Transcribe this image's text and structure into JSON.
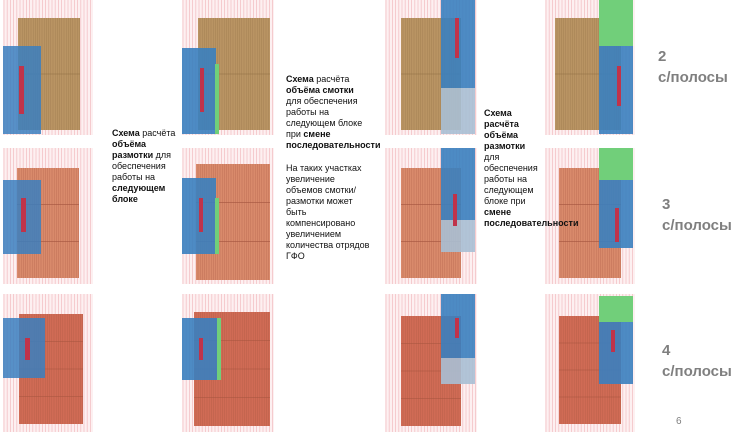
{
  "colors": {
    "field_stripe": "#f3c2c6",
    "field_bg": "#fdf0f1",
    "block_brown": "#b99463",
    "block_brown_grid": "#8d6c42",
    "block_orange": "#d98a6b",
    "block_red": "#d06b55",
    "block_grid": "#a4543f",
    "blue": "#3a7fbf",
    "blue_light": "#a9bfd4",
    "green": "#71cf7a",
    "face": "#c0334a"
  },
  "captions": {
    "razmotka_1": {
      "lead_bold": "Схема",
      "lead": " расчёта ",
      "bold1": "объёма размотки",
      "mid": " для обеспечения работы на ",
      "bold2": "следующем блоке"
    },
    "smotka": {
      "lead_bold": "Схема",
      "lead": " расчёта ",
      "bold1": "объёма смотки",
      "mid": " для обеспечения работы на следующем блоке при ",
      "bold2": "смене последовательности",
      "note": "На таких участках увеличение объемов смотки/размотки может быть компенсировано увеличением количества отрядов ГФО"
    },
    "razmotka_2": {
      "lead_bold": "Схема расчёта объёма размотки",
      "mid": " для обеспечения работы на следующем блоке при ",
      "bold2": "смене последовательности"
    }
  },
  "stripe_labels": [
    {
      "number": "2",
      "unit": "с/полосы"
    },
    {
      "number": "3",
      "unit": "с/полосы"
    },
    {
      "number": "4",
      "unit": "с/полосы"
    }
  ],
  "page_number": "6"
}
